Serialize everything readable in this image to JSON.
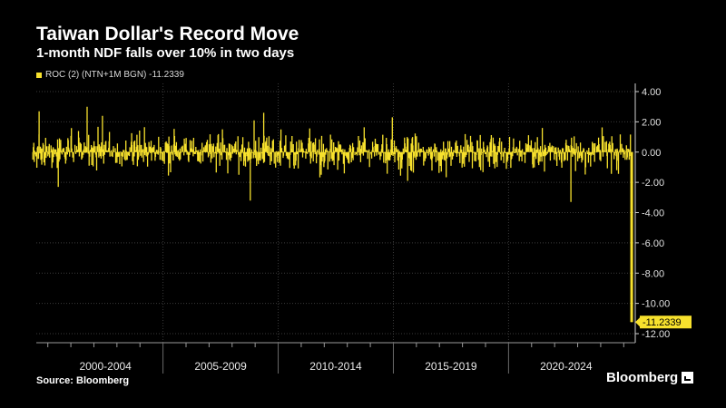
{
  "header": {
    "title": "Taiwan Dollar's Record Move",
    "subtitle": "1-month NDF falls over 10% in two days"
  },
  "footer": {
    "source": "Source: Bloomberg",
    "logo_text": "Bloomberg"
  },
  "chart_data": {
    "type": "bar",
    "legend": {
      "label": "ROC (2) (NTN+1M BGN) -11.2339",
      "placement": "top-left"
    },
    "series": [
      {
        "name": "ROC (2) (NTN+1M BGN)",
        "color": "#f7e12d"
      }
    ],
    "last_value_label": "-11.2339",
    "last_value": -11.2339,
    "ylim": [
      -12,
      4
    ],
    "y_ticks": [
      4,
      2,
      0,
      -2,
      -4,
      -6,
      -8,
      -10,
      -12
    ],
    "y_tick_labels": [
      "4.00",
      "2.00",
      "0.00",
      "-2.00",
      "-4.00",
      "-6.00",
      "-8.00",
      "-10.00",
      "-12.00"
    ],
    "x_categories": [
      "2000-2004",
      "2005-2009",
      "2010-2014",
      "2015-2019",
      "2020-2024"
    ],
    "x_start_year": 1999.5,
    "x_end_year": 2025.5,
    "grid": true,
    "notable_points": [
      {
        "date": "1999-08",
        "value": 2.7
      },
      {
        "date": "2000-06",
        "value": -2.3
      },
      {
        "date": "2001-09",
        "value": 3.0
      },
      {
        "date": "2002-05",
        "value": 2.4
      },
      {
        "date": "2008-10",
        "value": -3.2
      },
      {
        "date": "2008-12",
        "value": 2.1
      },
      {
        "date": "2009-05",
        "value": 2.6
      },
      {
        "date": "2014-12",
        "value": 2.3
      },
      {
        "date": "2015-08",
        "value": -1.9
      },
      {
        "date": "2022-09",
        "value": -3.3
      },
      {
        "date": "2025-05-02",
        "value": -1.9
      },
      {
        "date": "2025-05-05",
        "value": -11.2339
      }
    ],
    "noise_amplitude": 0.8
  }
}
